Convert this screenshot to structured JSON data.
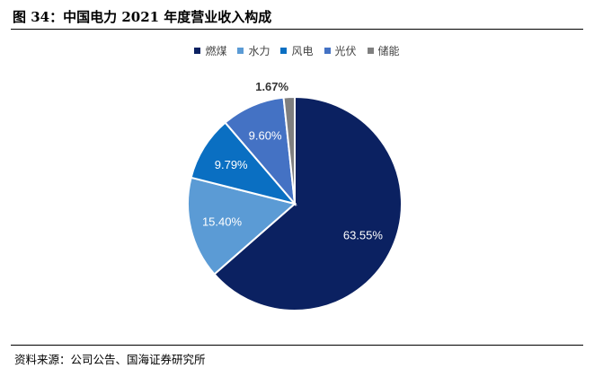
{
  "figure": {
    "title": "图 34：中国电力 2021 年度营业收入构成",
    "source": "资料来源：公司公告、国海证券研究所"
  },
  "chart_data": {
    "type": "pie",
    "title": "",
    "legend_position": "top",
    "slices": [
      {
        "name": "燃煤",
        "value": 63.55,
        "label": "63.55%",
        "color": "#0b2161"
      },
      {
        "name": "水力",
        "value": 15.4,
        "label": "15.40%",
        "color": "#5b9bd5"
      },
      {
        "name": "风电",
        "value": 9.79,
        "label": "9.79%",
        "color": "#0a6fc2"
      },
      {
        "name": "光伏",
        "value": 9.6,
        "label": "9.60%",
        "color": "#4472c4"
      },
      {
        "name": "储能",
        "value": 1.67,
        "label": "1.67%",
        "color": "#7f7f7f"
      }
    ]
  }
}
